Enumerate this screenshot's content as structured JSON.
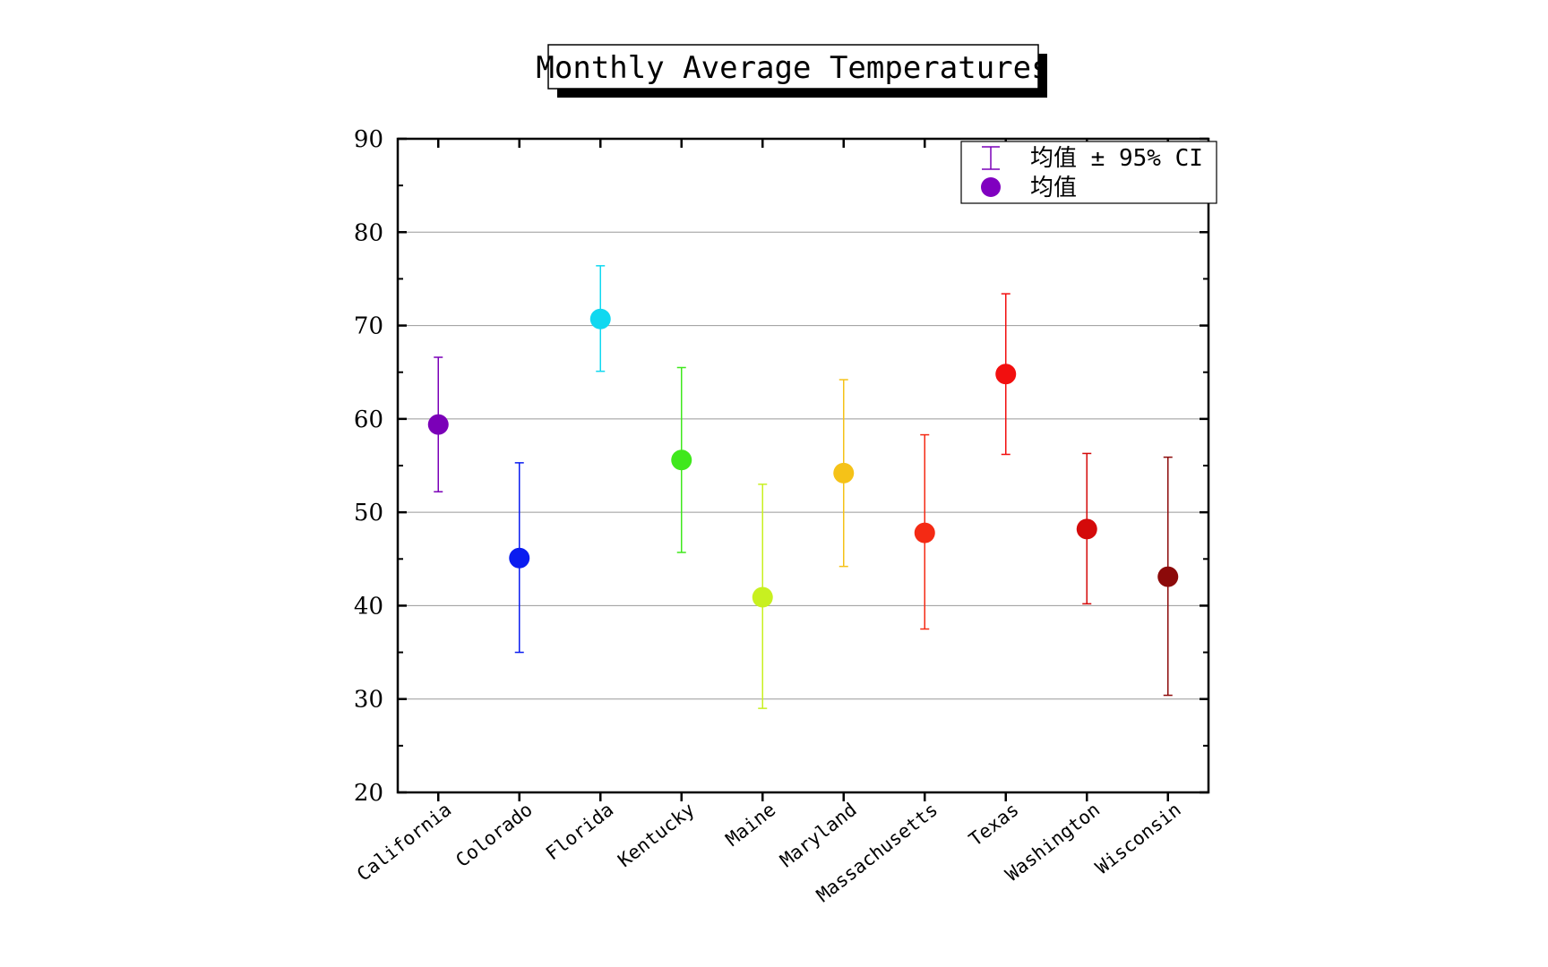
{
  "chart_data": {
    "type": "scatter",
    "title": "Monthly Average Temperatures",
    "xlabel": "",
    "ylabel": "",
    "ylim": [
      20,
      90
    ],
    "yticks": [
      20,
      30,
      40,
      50,
      60,
      70,
      80,
      90
    ],
    "grid": true,
    "legend_position": "top-right",
    "legend": [
      {
        "label": "均值 ± 95% CI",
        "marker": "error-bar",
        "color": "#7a00b8"
      },
      {
        "label": "均值",
        "marker": "circle",
        "color": "#8000c0"
      }
    ],
    "categories": [
      "California",
      "Colorado",
      "Florida",
      "Kentucky",
      "Maine",
      "Maryland",
      "Massachusetts",
      "Texas",
      "Washington",
      "Wisconsin"
    ],
    "points": [
      {
        "category": "California",
        "mean": 59.4,
        "lower": 52.2,
        "upper": 66.6,
        "color": "#7b00b8"
      },
      {
        "category": "Colorado",
        "mean": 45.1,
        "lower": 35.0,
        "upper": 55.3,
        "color": "#0a1cf0"
      },
      {
        "category": "Florida",
        "mean": 70.7,
        "lower": 65.1,
        "upper": 76.4,
        "color": "#10d8f0"
      },
      {
        "category": "Kentucky",
        "mean": 55.6,
        "lower": 45.7,
        "upper": 65.5,
        "color": "#3fe81c"
      },
      {
        "category": "Maine",
        "mean": 40.9,
        "lower": 29.0,
        "upper": 53.0,
        "color": "#c8f020"
      },
      {
        "category": "Maryland",
        "mean": 54.2,
        "lower": 44.2,
        "upper": 64.2,
        "color": "#f5c218"
      },
      {
        "category": "Massachusetts",
        "mean": 47.8,
        "lower": 37.5,
        "upper": 58.3,
        "color": "#f42a14"
      },
      {
        "category": "Texas",
        "mean": 64.8,
        "lower": 56.2,
        "upper": 73.4,
        "color": "#f20f0f"
      },
      {
        "category": "Washington",
        "mean": 48.2,
        "lower": 40.2,
        "upper": 56.3,
        "color": "#d40a0a"
      },
      {
        "category": "Wisconsin",
        "mean": 43.1,
        "lower": 30.4,
        "upper": 55.9,
        "color": "#8c0a0a"
      }
    ]
  }
}
